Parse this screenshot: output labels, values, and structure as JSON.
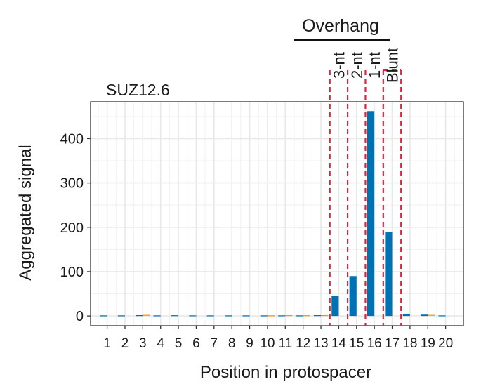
{
  "chart_data": {
    "type": "bar",
    "title": "SUZ12.6",
    "xlabel": "Position in protospacer",
    "ylabel": "Aggregated signal",
    "categories": [
      "1",
      "2",
      "3",
      "4",
      "5",
      "6",
      "7",
      "8",
      "9",
      "10",
      "11",
      "12",
      "13",
      "14",
      "15",
      "16",
      "17",
      "18",
      "19",
      "20"
    ],
    "x": [
      1,
      2,
      3,
      4,
      5,
      6,
      7,
      8,
      9,
      10,
      11,
      12,
      13,
      14,
      15,
      16,
      17,
      18,
      19,
      20
    ],
    "series": [
      {
        "color": "#0072B2",
        "values": [
          0.3,
          0.3,
          0.8,
          0.3,
          0.6,
          0.3,
          0.3,
          0.3,
          0.3,
          0.3,
          0.3,
          0.3,
          0.8,
          46,
          90,
          462,
          190,
          5,
          3,
          0.3
        ]
      },
      {
        "color": "#E69F00",
        "values": [
          0,
          0,
          1.5,
          0,
          0,
          0,
          0,
          0,
          0,
          0.4,
          0.9,
          0.6,
          0.9,
          0,
          0,
          0,
          0,
          0,
          1.5,
          0
        ]
      }
    ],
    "ylim": [
      -22,
      483
    ],
    "yticks": [
      0,
      100,
      200,
      300,
      400
    ],
    "grid": true,
    "annotations": {
      "group_label": "Overhang",
      "regions": [
        {
          "label": "3-nt",
          "x": 13.5
        },
        {
          "label": "2-nt",
          "x": 14.5
        },
        {
          "label": "1-nt",
          "x": 15.5
        },
        {
          "label": "Blunt",
          "x": 16.5
        }
      ],
      "line_color": "#D7263D",
      "end_x": 17.5
    }
  }
}
